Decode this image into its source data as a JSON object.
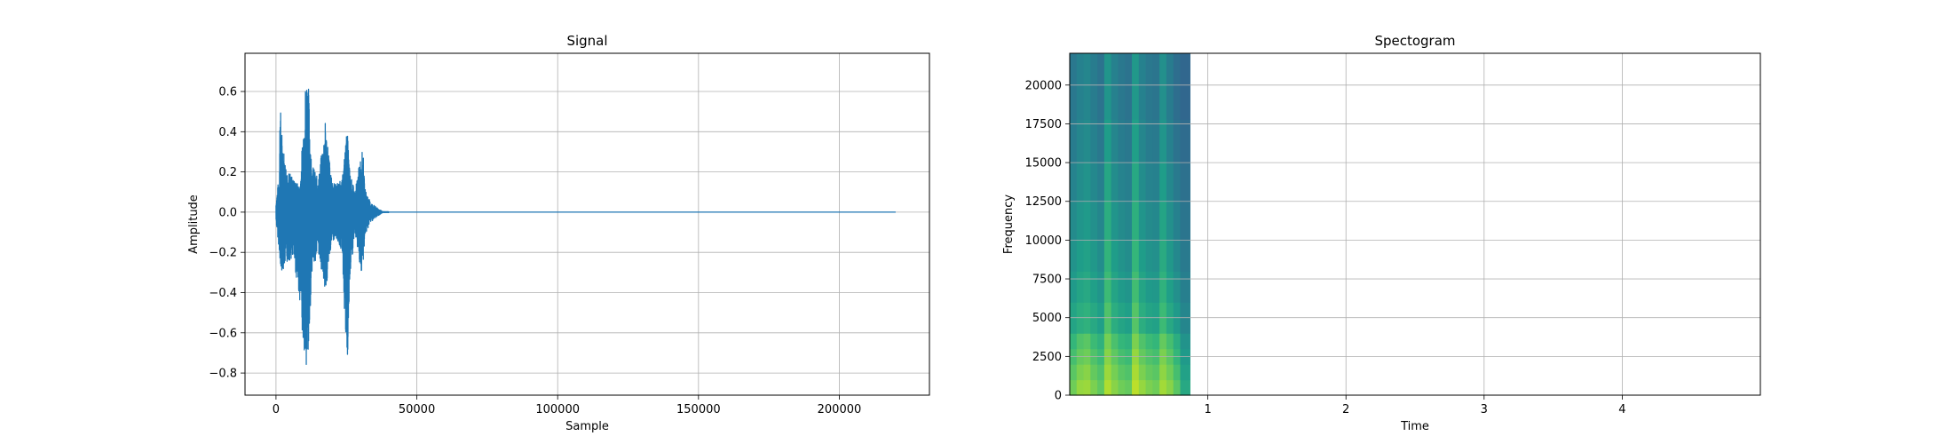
{
  "chart_data": [
    {
      "type": "line",
      "title": "Signal",
      "xlabel": "Sample",
      "ylabel": "Amplitude",
      "xlim": [
        -11000,
        232000
      ],
      "ylim": [
        -0.91,
        0.79
      ],
      "xticks": [
        0,
        50000,
        100000,
        150000,
        200000
      ],
      "xtick_labels": [
        "0",
        "50000",
        "100000",
        "150000",
        "200000"
      ],
      "yticks": [
        -0.8,
        -0.6,
        -0.4,
        -0.2,
        0.0,
        0.2,
        0.4,
        0.6
      ],
      "ytick_labels": [
        "−0.8",
        "−0.6",
        "−0.4",
        "−0.2",
        "0.0",
        "0.2",
        "0.4",
        "0.6"
      ],
      "grid": true,
      "color": "#1f77b4",
      "series": [
        {
          "x": [
            0,
            1200,
            1500,
            1700,
            3200,
            4200,
            6000,
            8500,
            10700,
            11300,
            11800,
            12600,
            15000,
            17500,
            18400,
            18900,
            19500,
            21000,
            23500,
            25000,
            25500,
            26200,
            28000,
            30400,
            31000,
            31500,
            33500,
            36000,
            38000,
            220000
          ],
          "y_max": [
            0.05,
            0.2,
            0.68,
            0.45,
            0.26,
            0.21,
            0.17,
            0.13,
            0.71,
            0.7,
            0.55,
            0.25,
            0.16,
            0.45,
            0.35,
            0.28,
            0.18,
            0.14,
            0.16,
            0.39,
            0.38,
            0.2,
            0.1,
            0.31,
            0.28,
            0.12,
            0.05,
            0.02,
            0.002,
            0.002
          ],
          "y_min": [
            -0.05,
            -0.2,
            -0.36,
            -0.3,
            -0.27,
            -0.25,
            -0.22,
            -0.45,
            -0.83,
            -0.82,
            -0.65,
            -0.3,
            -0.2,
            -0.4,
            -0.32,
            -0.25,
            -0.17,
            -0.12,
            -0.2,
            -0.78,
            -0.75,
            -0.35,
            -0.1,
            -0.32,
            -0.25,
            -0.12,
            -0.05,
            -0.02,
            -0.002,
            -0.002
          ]
        }
      ]
    },
    {
      "type": "heatmap",
      "title": "Spectogram",
      "xlabel": "Time",
      "ylabel": "Frequency",
      "xlim": [
        0,
        5
      ],
      "ylim": [
        0,
        22050
      ],
      "xticks": [
        1,
        2,
        3,
        4
      ],
      "xtick_labels": [
        "1",
        "2",
        "3",
        "4"
      ],
      "yticks": [
        0,
        2500,
        5000,
        7500,
        10000,
        12500,
        15000,
        17500,
        20000
      ],
      "ytick_labels": [
        "0",
        "2500",
        "5000",
        "7500",
        "10000",
        "12500",
        "15000",
        "17500",
        "20000"
      ],
      "grid": true,
      "colormap": "viridis",
      "data_extent": {
        "time": [
          0,
          0.87
        ],
        "frequency": [
          0,
          22050
        ]
      },
      "frequency_bands_hz": [
        0,
        1000,
        2000,
        3000,
        4000,
        6000,
        8000,
        10000,
        12500,
        15000,
        17800,
        22050
      ],
      "time_bins": [
        0,
        0.05,
        0.1,
        0.15,
        0.2,
        0.25,
        0.3,
        0.35,
        0.4,
        0.45,
        0.5,
        0.55,
        0.6,
        0.65,
        0.7,
        0.75,
        0.8,
        0.87
      ],
      "intensity": [
        [
          0.78,
          0.84,
          0.85,
          0.8,
          0.75,
          0.88,
          0.82,
          0.78,
          0.76,
          0.9,
          0.84,
          0.8,
          0.78,
          0.86,
          0.82,
          0.74,
          0.6
        ],
        [
          0.74,
          0.8,
          0.82,
          0.76,
          0.72,
          0.85,
          0.79,
          0.74,
          0.72,
          0.87,
          0.8,
          0.76,
          0.74,
          0.83,
          0.78,
          0.7,
          0.57
        ],
        [
          0.7,
          0.76,
          0.78,
          0.72,
          0.68,
          0.82,
          0.75,
          0.7,
          0.68,
          0.84,
          0.76,
          0.72,
          0.7,
          0.8,
          0.74,
          0.66,
          0.54
        ],
        [
          0.66,
          0.72,
          0.74,
          0.68,
          0.64,
          0.79,
          0.71,
          0.66,
          0.64,
          0.8,
          0.72,
          0.68,
          0.66,
          0.76,
          0.7,
          0.62,
          0.51
        ],
        [
          0.58,
          0.62,
          0.64,
          0.6,
          0.56,
          0.72,
          0.62,
          0.58,
          0.56,
          0.73,
          0.62,
          0.58,
          0.57,
          0.68,
          0.6,
          0.54,
          0.46
        ],
        [
          0.54,
          0.58,
          0.6,
          0.56,
          0.52,
          0.68,
          0.58,
          0.54,
          0.52,
          0.69,
          0.58,
          0.54,
          0.53,
          0.64,
          0.56,
          0.5,
          0.43
        ],
        [
          0.51,
          0.55,
          0.57,
          0.53,
          0.49,
          0.65,
          0.55,
          0.51,
          0.49,
          0.66,
          0.55,
          0.51,
          0.5,
          0.61,
          0.53,
          0.47,
          0.41
        ],
        [
          0.48,
          0.52,
          0.54,
          0.5,
          0.46,
          0.62,
          0.52,
          0.48,
          0.46,
          0.63,
          0.52,
          0.48,
          0.47,
          0.58,
          0.5,
          0.44,
          0.39
        ],
        [
          0.45,
          0.49,
          0.51,
          0.47,
          0.43,
          0.59,
          0.49,
          0.45,
          0.43,
          0.6,
          0.49,
          0.45,
          0.44,
          0.55,
          0.47,
          0.41,
          0.37
        ],
        [
          0.42,
          0.46,
          0.48,
          0.44,
          0.4,
          0.55,
          0.46,
          0.42,
          0.4,
          0.56,
          0.46,
          0.42,
          0.41,
          0.52,
          0.44,
          0.38,
          0.35
        ],
        [
          0.4,
          0.44,
          0.46,
          0.42,
          0.38,
          0.52,
          0.44,
          0.4,
          0.38,
          0.53,
          0.44,
          0.4,
          0.39,
          0.5,
          0.42,
          0.36,
          0.33
        ],
        [
          0.25,
          0.26,
          0.27,
          0.26,
          0.25,
          0.27,
          0.26,
          0.25,
          0.25,
          0.27,
          0.26,
          0.25,
          0.25,
          0.27,
          0.26,
          0.25,
          0.24
        ]
      ]
    }
  ]
}
